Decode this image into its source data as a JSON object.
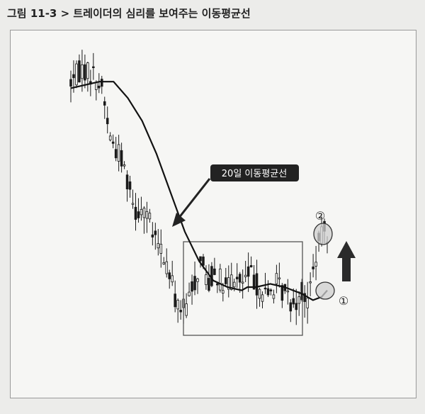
{
  "caption": "그림 11-3 > 트레이더의 심리를 보여주는 이동평균선",
  "chart_data": {
    "type": "candlestick",
    "title": "",
    "xlabel": "",
    "ylabel": "",
    "grid": false,
    "ylim": [
      0,
      100
    ],
    "annotations": {
      "ma_label": "20일 이동평균선",
      "marker_1": "①",
      "marker_2": "②"
    },
    "series": [
      {
        "name": "20일 이동평균선",
        "type": "line",
        "x": [
          0,
          5,
          10,
          15,
          20,
          25,
          30,
          35,
          40,
          45,
          50,
          55,
          60,
          62,
          65,
          70,
          75,
          78,
          81,
          85,
          88,
          90
        ],
        "values": [
          86,
          87,
          88,
          88,
          83,
          76,
          66,
          54,
          42,
          33,
          27,
          25,
          24,
          25,
          25,
          26,
          25,
          24,
          23,
          21,
          22,
          24
        ]
      }
    ],
    "colors": {
      "candle": "#1a1a1a",
      "ma_line": "#111111",
      "arrow": "#2b2b2b",
      "marker": "#c9c9c9"
    }
  }
}
